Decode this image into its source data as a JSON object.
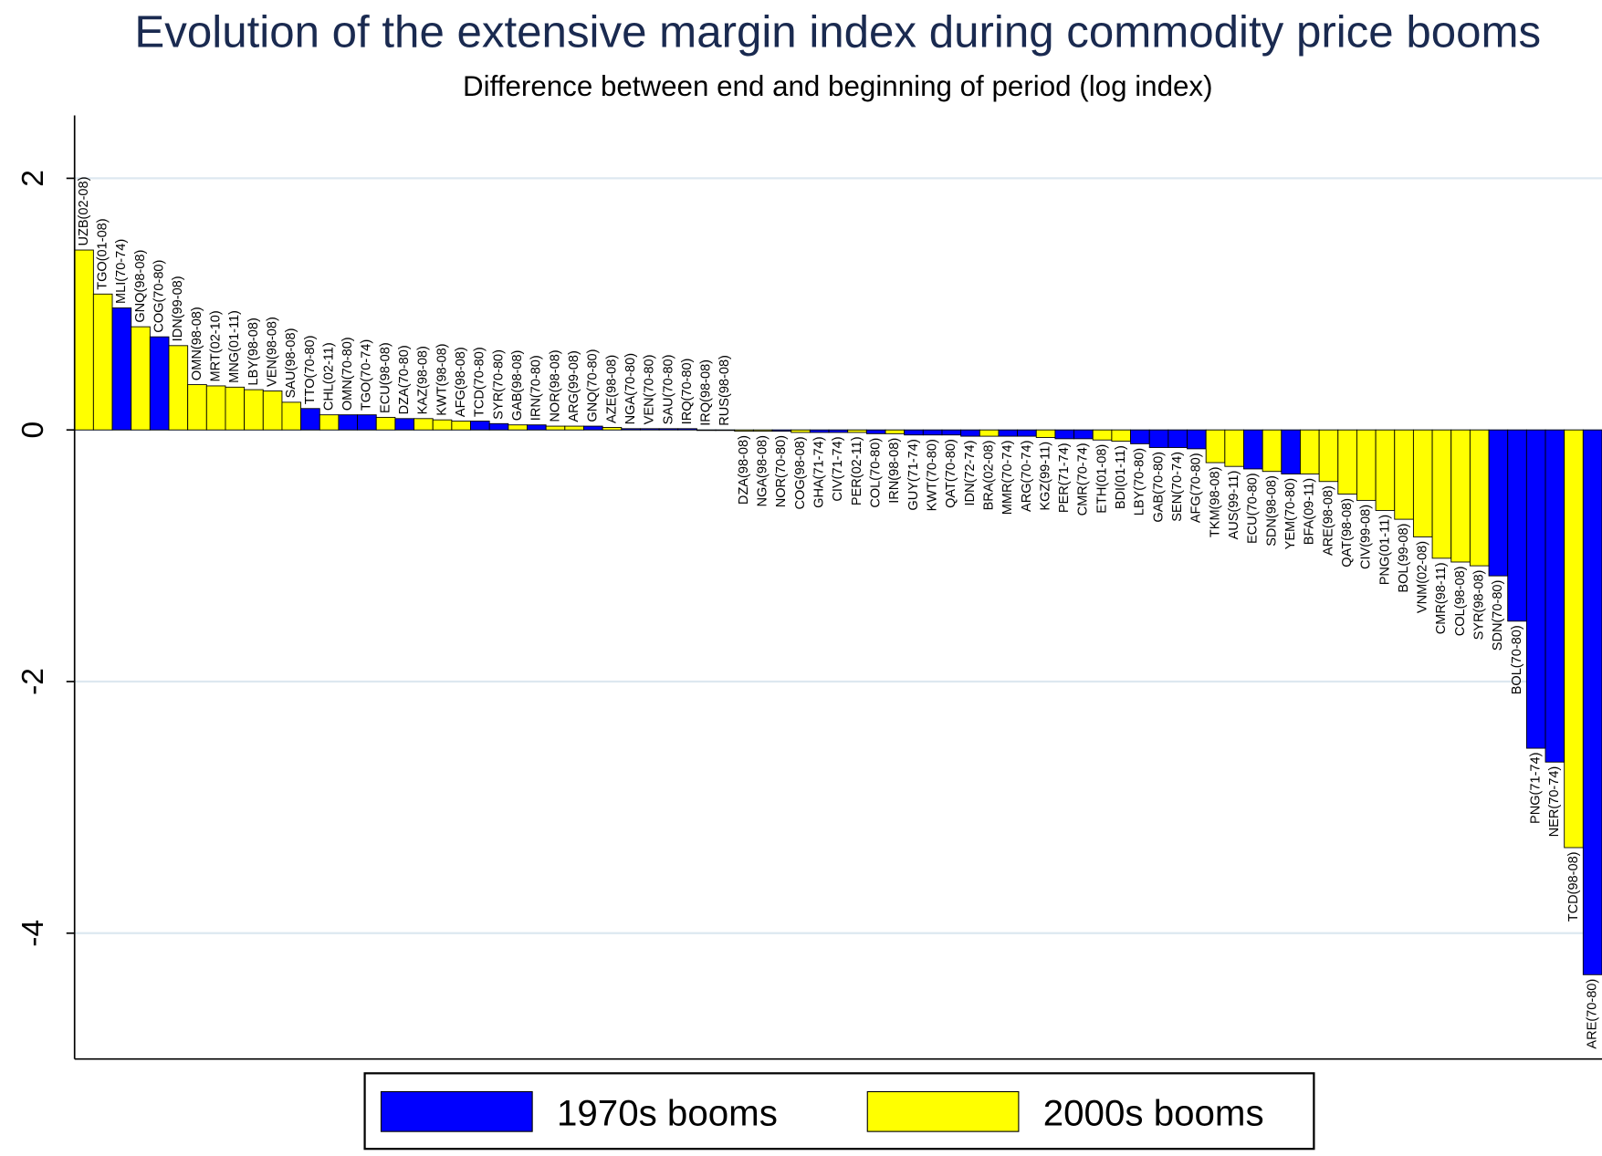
{
  "chart_data": {
    "type": "bar",
    "title": "Evolution of the extensive margin index during commodity price booms",
    "subtitle": "Difference between end and beginning of period (log index)",
    "categories": [
      "UZB(02-08)",
      "TGO(01-08)",
      "MLI(70-74)",
      "GNQ(98-08)",
      "COG(70-80)",
      "IDN(99-08)",
      "OMN(98-08)",
      "MRT(02-10)",
      "MNG(01-11)",
      "LBY(98-08)",
      "VEN(98-08)",
      "SAU(98-08)",
      "TTO(70-80)",
      "CHL(02-11)",
      "OMN(70-80)",
      "TGO(70-74)",
      "ECU(98-08)",
      "DZA(70-80)",
      "KAZ(98-08)",
      "KWT(98-08)",
      "AFG(98-08)",
      "TCD(70-80)",
      "SYR(70-80)",
      "GAB(98-08)",
      "IRN(70-80)",
      "NOR(98-08)",
      "ARG(99-08)",
      "GNQ(70-80)",
      "AZE(98-08)",
      "NGA(70-80)",
      "VEN(70-80)",
      "SAU(70-80)",
      "IRQ(70-80)",
      "IRQ(98-08)",
      "RUS(98-08)",
      "DZA(98-08)",
      "NGA(98-08)",
      "NOR(70-80)",
      "COG(98-08)",
      "GHA(71-74)",
      "CIV(71-74)",
      "PER(02-11)",
      "COL(70-80)",
      "IRN(98-08)",
      "GUY(71-74)",
      "KWT(70-80)",
      "QAT(70-80)",
      "IDN(72-74)",
      "BRA(02-08)",
      "MMR(70-74)",
      "ARG(70-74)",
      "KGZ(99-11)",
      "PER(71-74)",
      "CMR(70-74)",
      "ETH(01-08)",
      "BDI(01-11)",
      "LBY(70-80)",
      "GAB(70-80)",
      "SEN(70-74)",
      "AFG(70-80)",
      "TKM(98-08)",
      "AUS(99-11)",
      "ECU(70-80)",
      "SDN(98-08)",
      "YEM(70-80)",
      "BFA(09-11)",
      "ARE(98-08)",
      "QAT(98-08)",
      "CIV(99-08)",
      "PNG(01-11)",
      "BOL(99-08)",
      "VNM(02-08)",
      "CMR(98-11)",
      "COL(98-08)",
      "SYR(98-08)",
      "SDN(70-80)",
      "BOL(70-80)",
      "PNG(71-74)",
      "NER(70-74)",
      "TCD(98-08)",
      "ARE(70-80)"
    ],
    "series": [
      {
        "name": "1970s booms",
        "color": "#0000ff",
        "values": [
          null,
          null,
          0.97,
          null,
          0.74,
          null,
          null,
          null,
          null,
          null,
          null,
          null,
          0.17,
          null,
          0.12,
          0.12,
          null,
          0.09,
          null,
          null,
          null,
          0.07,
          0.05,
          null,
          0.04,
          null,
          null,
          0.03,
          null,
          0.01,
          0.01,
          0.01,
          0.01,
          null,
          null,
          null,
          null,
          -0.01,
          null,
          -0.02,
          -0.02,
          null,
          -0.03,
          null,
          -0.04,
          -0.04,
          -0.04,
          -0.05,
          null,
          -0.05,
          -0.05,
          null,
          -0.07,
          -0.07,
          null,
          null,
          -0.11,
          -0.14,
          -0.14,
          -0.15,
          null,
          null,
          -0.31,
          null,
          -0.35,
          null,
          null,
          null,
          null,
          null,
          null,
          null,
          null,
          null,
          null,
          -1.16,
          -1.52,
          -2.53,
          -2.64,
          null,
          -4.33
        ]
      },
      {
        "name": "2000s booms",
        "color": "#ffff00",
        "values": [
          1.43,
          1.08,
          null,
          0.82,
          null,
          0.67,
          0.36,
          0.35,
          0.34,
          0.32,
          0.31,
          0.22,
          null,
          0.12,
          null,
          null,
          0.1,
          null,
          0.09,
          0.08,
          0.07,
          null,
          null,
          0.04,
          null,
          0.03,
          0.03,
          null,
          0.02,
          null,
          null,
          null,
          null,
          0.0,
          0.0,
          -0.01,
          -0.01,
          null,
          -0.02,
          null,
          null,
          -0.02,
          null,
          -0.03,
          null,
          null,
          null,
          null,
          -0.05,
          null,
          null,
          -0.06,
          null,
          null,
          -0.08,
          -0.09,
          null,
          null,
          null,
          null,
          -0.26,
          -0.29,
          null,
          -0.33,
          null,
          -0.35,
          -0.41,
          -0.51,
          -0.56,
          -0.64,
          -0.71,
          -0.85,
          -1.02,
          -1.05,
          -1.08,
          null,
          null,
          null,
          null,
          -3.32,
          null
        ]
      }
    ],
    "ylim": [
      -5,
      2.5
    ],
    "yticks": [
      -4,
      -2,
      0,
      2
    ],
    "grid": true
  }
}
